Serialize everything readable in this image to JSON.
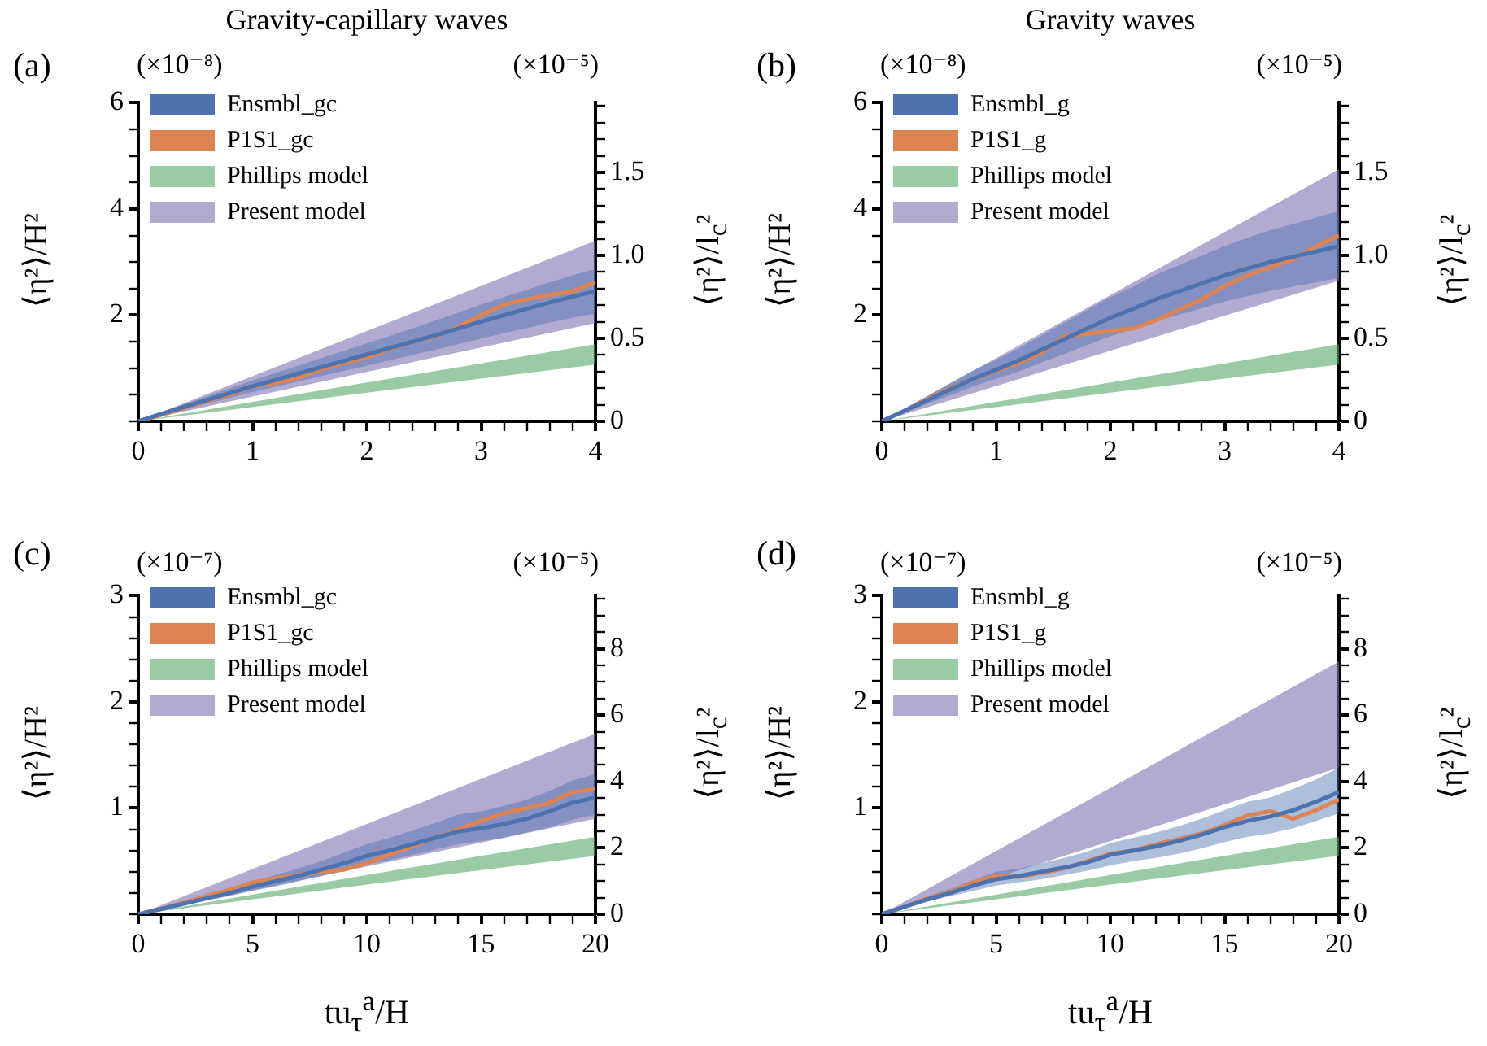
{
  "chart_data": [
    {
      "type": "line",
      "title": "Gravity-capillary waves",
      "ylabel": "⟨η²⟩/H²",
      "y2label": "⟨η²⟩/l$_{c}$²",
      "annotations": [
        "(a)",
        "(×10⁻⁸)",
        "(×10⁻⁵)"
      ],
      "legend": "top left",
      "marker": "none",
      "xlim": [
        0,
        4
      ],
      "ylim": [
        0,
        6
      ],
      "y2lim": [
        0,
        1.92
      ],
      "xticks": [
        0,
        {
          "value": 0.2,
          "label": null
        },
        {
          "value": 0.4,
          "label": null
        },
        {
          "value": 0.6,
          "label": null
        },
        {
          "value": 0.8,
          "label": null
        },
        1,
        {
          "value": 1.2,
          "label": null
        },
        {
          "value": 1.4,
          "label": null
        },
        {
          "value": 1.6,
          "label": null
        },
        {
          "value": 1.8,
          "label": null
        },
        2,
        {
          "value": 2.2,
          "label": null
        },
        {
          "value": 2.4,
          "label": null
        },
        {
          "value": 2.6,
          "label": null
        },
        {
          "value": 2.8,
          "label": null
        },
        3,
        {
          "value": 3.2,
          "label": null
        },
        {
          "value": 3.4,
          "label": null
        },
        {
          "value": 3.6,
          "label": null
        },
        {
          "value": 3.8,
          "label": null
        },
        4
      ],
      "yticks": [
        {
          "value": 0,
          "label": null
        },
        {
          "value": 0.5,
          "label": null
        },
        {
          "value": 1,
          "label": null
        },
        {
          "value": 1.5,
          "label": null
        },
        2,
        {
          "value": 2.5,
          "label": null
        },
        {
          "value": 3,
          "label": null
        },
        {
          "value": 3.5,
          "label": null
        },
        4,
        {
          "value": 4.5,
          "label": null
        },
        {
          "value": 5,
          "label": null
        },
        {
          "value": 5.5,
          "label": null
        },
        6
      ],
      "y2ticks": [
        0,
        {
          "value": 0.1,
          "label": null
        },
        {
          "value": 0.2,
          "label": null
        },
        {
          "value": 0.3,
          "label": null
        },
        {
          "value": 0.4,
          "label": null
        },
        0.5,
        {
          "value": 0.6,
          "label": null
        },
        {
          "value": 0.7,
          "label": null
        },
        {
          "value": 0.8,
          "label": null
        },
        {
          "value": 0.9,
          "label": null
        },
        {
          "value": 1,
          "label": "1.0"
        },
        {
          "value": 1.1,
          "label": null
        },
        {
          "value": 1.2,
          "label": null
        },
        {
          "value": 1.3,
          "label": null
        },
        {
          "value": 1.4,
          "label": null
        },
        1.5,
        {
          "value": 1.6,
          "label": null
        },
        {
          "value": 1.7,
          "label": null
        },
        {
          "value": 1.8,
          "label": null
        },
        {
          "value": 1.9,
          "label": null
        }
      ],
      "x": [
        0,
        0.2,
        0.4,
        0.6,
        0.8,
        1,
        1.2,
        1.4,
        1.6,
        1.8,
        2,
        2.2,
        2.4,
        2.6,
        2.8,
        3,
        3.2,
        3.4,
        3.6,
        3.8,
        4
      ],
      "series": [
        {
          "name": "Ensmbl_gc",
          "type": "line",
          "color": "#4c72b0",
          "values": [
            0,
            0.14,
            0.27,
            0.4,
            0.53,
            0.66,
            0.78,
            0.9,
            1.02,
            1.14,
            1.26,
            1.38,
            1.5,
            1.62,
            1.75,
            1.88,
            2.0,
            2.12,
            2.24,
            2.35,
            2.45
          ],
          "lower": [
            0,
            0.11,
            0.22,
            0.33,
            0.44,
            0.55,
            0.65,
            0.75,
            0.85,
            0.95,
            1.05,
            1.15,
            1.25,
            1.35,
            1.45,
            1.56,
            1.66,
            1.76,
            1.86,
            1.95,
            2.03
          ],
          "upper": [
            0,
            0.17,
            0.32,
            0.47,
            0.62,
            0.77,
            0.91,
            1.05,
            1.19,
            1.33,
            1.47,
            1.61,
            1.75,
            1.9,
            2.05,
            2.2,
            2.34,
            2.48,
            2.62,
            2.75,
            2.87
          ]
        },
        {
          "name": "P1S1_gc",
          "type": "line",
          "color": "#dd8452",
          "values": [
            0,
            0.12,
            0.25,
            0.38,
            0.5,
            0.66,
            0.72,
            0.82,
            0.98,
            1.1,
            1.2,
            1.36,
            1.5,
            1.6,
            1.78,
            2.0,
            2.2,
            2.3,
            2.38,
            2.45,
            2.62
          ]
        },
        {
          "name": "Phillips model",
          "type": "line",
          "color": "#55a868",
          "x": [
            0,
            2,
            4
          ],
          "values": [
            null,
            null,
            null
          ],
          "lower": [
            0,
            0.54,
            1.07
          ],
          "upper": [
            0,
            0.73,
            1.45
          ]
        },
        {
          "name": "Present model",
          "type": "line",
          "color": "#8172b3",
          "x": [
            0,
            2,
            4
          ],
          "values": [
            null,
            null,
            null
          ],
          "lower": [
            0,
            0.93,
            1.85
          ],
          "upper": [
            0,
            1.7,
            3.4
          ]
        }
      ]
    },
    {
      "type": "line",
      "title": "Gravity waves",
      "ylabel": "⟨η²⟩/H²",
      "y2label": "⟨η²⟩/l$_{c}$²",
      "annotations": [
        "(b)",
        "(×10⁻⁸)",
        "(×10⁻⁵)"
      ],
      "legend": "top left",
      "marker": "none",
      "xlim": [
        0,
        4
      ],
      "ylim": [
        0,
        6
      ],
      "y2lim": [
        0,
        1.92
      ],
      "xticks": [
        0,
        {
          "value": 0.2,
          "label": null
        },
        {
          "value": 0.4,
          "label": null
        },
        {
          "value": 0.6,
          "label": null
        },
        {
          "value": 0.8,
          "label": null
        },
        1,
        {
          "value": 1.2,
          "label": null
        },
        {
          "value": 1.4,
          "label": null
        },
        {
          "value": 1.6,
          "label": null
        },
        {
          "value": 1.8,
          "label": null
        },
        2,
        {
          "value": 2.2,
          "label": null
        },
        {
          "value": 2.4,
          "label": null
        },
        {
          "value": 2.6,
          "label": null
        },
        {
          "value": 2.8,
          "label": null
        },
        3,
        {
          "value": 3.2,
          "label": null
        },
        {
          "value": 3.4,
          "label": null
        },
        {
          "value": 3.6,
          "label": null
        },
        {
          "value": 3.8,
          "label": null
        },
        4
      ],
      "yticks": [
        {
          "value": 0,
          "label": null
        },
        {
          "value": 0.5,
          "label": null
        },
        {
          "value": 1,
          "label": null
        },
        {
          "value": 1.5,
          "label": null
        },
        2,
        {
          "value": 2.5,
          "label": null
        },
        {
          "value": 3,
          "label": null
        },
        {
          "value": 3.5,
          "label": null
        },
        4,
        {
          "value": 4.5,
          "label": null
        },
        {
          "value": 5,
          "label": null
        },
        {
          "value": 5.5,
          "label": null
        },
        6
      ],
      "y2ticks": [
        0,
        {
          "value": 0.1,
          "label": null
        },
        {
          "value": 0.2,
          "label": null
        },
        {
          "value": 0.3,
          "label": null
        },
        {
          "value": 0.4,
          "label": null
        },
        0.5,
        {
          "value": 0.6,
          "label": null
        },
        {
          "value": 0.7,
          "label": null
        },
        {
          "value": 0.8,
          "label": null
        },
        {
          "value": 0.9,
          "label": null
        },
        {
          "value": 1,
          "label": "1.0"
        },
        {
          "value": 1.1,
          "label": null
        },
        {
          "value": 1.2,
          "label": null
        },
        {
          "value": 1.3,
          "label": null
        },
        {
          "value": 1.4,
          "label": null
        },
        1.5,
        {
          "value": 1.6,
          "label": null
        },
        {
          "value": 1.7,
          "label": null
        },
        {
          "value": 1.8,
          "label": null
        },
        {
          "value": 1.9,
          "label": null
        }
      ],
      "x": [
        0,
        0.2,
        0.4,
        0.6,
        0.8,
        1,
        1.2,
        1.4,
        1.6,
        1.8,
        2,
        2.2,
        2.4,
        2.6,
        2.8,
        3,
        3.2,
        3.4,
        3.6,
        3.8,
        4
      ],
      "series": [
        {
          "name": "Ensmbl_g",
          "type": "line",
          "color": "#4c72b0",
          "values": [
            0,
            0.2,
            0.4,
            0.6,
            0.8,
            0.97,
            1.15,
            1.35,
            1.55,
            1.75,
            1.95,
            2.12,
            2.3,
            2.45,
            2.6,
            2.75,
            2.88,
            3.0,
            3.1,
            3.2,
            3.3
          ],
          "lower": [
            0,
            0.16,
            0.33,
            0.49,
            0.66,
            0.8,
            0.94,
            1.11,
            1.27,
            1.44,
            1.6,
            1.74,
            1.89,
            2.01,
            2.13,
            2.26,
            2.36,
            2.46,
            2.54,
            2.62,
            2.7
          ],
          "upper": [
            0,
            0.24,
            0.48,
            0.72,
            0.96,
            1.16,
            1.38,
            1.62,
            1.86,
            2.1,
            2.34,
            2.54,
            2.76,
            2.94,
            3.12,
            3.3,
            3.46,
            3.6,
            3.72,
            3.84,
            3.96
          ]
        },
        {
          "name": "P1S1_g",
          "type": "line",
          "color": "#dd8452",
          "values": [
            0,
            0.2,
            0.42,
            0.62,
            0.8,
            0.95,
            1.1,
            1.3,
            1.6,
            1.65,
            1.7,
            1.75,
            1.9,
            2.1,
            2.3,
            2.55,
            2.75,
            2.9,
            3.05,
            3.3,
            3.5
          ]
        },
        {
          "name": "Phillips model",
          "type": "line",
          "color": "#55a868",
          "x": [
            0,
            2,
            4
          ],
          "values": [
            null,
            null,
            null
          ],
          "lower": [
            0,
            0.54,
            1.07
          ],
          "upper": [
            0,
            0.73,
            1.45
          ]
        },
        {
          "name": "Present model",
          "type": "line",
          "color": "#8172b3",
          "x": [
            0,
            2,
            4
          ],
          "values": [
            null,
            null,
            null
          ],
          "lower": [
            0,
            1.33,
            2.65
          ],
          "upper": [
            0,
            2.38,
            4.75
          ]
        }
      ]
    },
    {
      "type": "line",
      "xlabel": "tu$_{τ}$$^{a}$/H",
      "ylabel": "⟨η²⟩/H²",
      "y2label": "⟨η²⟩/l$_{c}$²",
      "annotations": [
        "(c)",
        "(×10⁻⁷)",
        "(×10⁻⁵)"
      ],
      "legend": "top left",
      "marker": "none",
      "xlim": [
        0,
        20
      ],
      "ylim": [
        0,
        3
      ],
      "y2lim": [
        0,
        9.6
      ],
      "xticks": [
        0,
        {
          "value": 1,
          "label": null
        },
        {
          "value": 2,
          "label": null
        },
        {
          "value": 3,
          "label": null
        },
        {
          "value": 4,
          "label": null
        },
        5,
        {
          "value": 6,
          "label": null
        },
        {
          "value": 7,
          "label": null
        },
        {
          "value": 8,
          "label": null
        },
        {
          "value": 9,
          "label": null
        },
        10,
        {
          "value": 11,
          "label": null
        },
        {
          "value": 12,
          "label": null
        },
        {
          "value": 13,
          "label": null
        },
        {
          "value": 14,
          "label": null
        },
        15,
        {
          "value": 16,
          "label": null
        },
        {
          "value": 17,
          "label": null
        },
        {
          "value": 18,
          "label": null
        },
        {
          "value": 19,
          "label": null
        },
        20
      ],
      "yticks": [
        {
          "value": 0,
          "label": null
        },
        {
          "value": 0.2,
          "label": null
        },
        {
          "value": 0.4,
          "label": null
        },
        {
          "value": 0.6,
          "label": null
        },
        {
          "value": 0.8,
          "label": null
        },
        1,
        {
          "value": 1.2,
          "label": null
        },
        {
          "value": 1.4,
          "label": null
        },
        {
          "value": 1.6,
          "label": null
        },
        {
          "value": 1.8,
          "label": null
        },
        2,
        {
          "value": 2.2,
          "label": null
        },
        {
          "value": 2.4,
          "label": null
        },
        {
          "value": 2.6,
          "label": null
        },
        {
          "value": 2.8,
          "label": null
        },
        3
      ],
      "y2ticks": [
        0,
        {
          "value": 0.5,
          "label": null
        },
        {
          "value": 1,
          "label": null
        },
        {
          "value": 1.5,
          "label": null
        },
        2,
        {
          "value": 2.5,
          "label": null
        },
        {
          "value": 3,
          "label": null
        },
        {
          "value": 3.5,
          "label": null
        },
        4,
        {
          "value": 4.5,
          "label": null
        },
        {
          "value": 5,
          "label": null
        },
        {
          "value": 5.5,
          "label": null
        },
        6,
        {
          "value": 6.5,
          "label": null
        },
        {
          "value": 7,
          "label": null
        },
        {
          "value": 7.5,
          "label": null
        },
        8,
        {
          "value": 8.5,
          "label": null
        },
        {
          "value": 9,
          "label": null
        },
        {
          "value": 9.5,
          "label": null
        }
      ],
      "x": [
        0,
        1,
        2,
        3,
        4,
        5,
        6,
        7,
        8,
        9,
        10,
        11,
        12,
        13,
        14,
        15,
        16,
        17,
        18,
        19,
        20
      ],
      "series": [
        {
          "name": "Ensmbl_gc",
          "type": "line",
          "color": "#4c72b0",
          "values": [
            0,
            0.05,
            0.1,
            0.15,
            0.2,
            0.26,
            0.31,
            0.36,
            0.42,
            0.48,
            0.55,
            0.6,
            0.66,
            0.72,
            0.78,
            0.81,
            0.85,
            0.9,
            0.97,
            1.05,
            1.1
          ],
          "lower": [
            0,
            0.04,
            0.09,
            0.13,
            0.17,
            0.22,
            0.26,
            0.31,
            0.36,
            0.41,
            0.47,
            0.51,
            0.56,
            0.61,
            0.66,
            0.69,
            0.72,
            0.77,
            0.82,
            0.89,
            0.94
          ],
          "upper": [
            0,
            0.06,
            0.12,
            0.18,
            0.24,
            0.31,
            0.37,
            0.43,
            0.5,
            0.58,
            0.66,
            0.72,
            0.79,
            0.86,
            0.94,
            0.97,
            1.02,
            1.08,
            1.16,
            1.26,
            1.32
          ]
        },
        {
          "name": "P1S1_gc",
          "type": "line",
          "color": "#dd8452",
          "values": [
            0,
            0.05,
            0.11,
            0.17,
            0.23,
            0.3,
            0.34,
            0.37,
            0.4,
            0.42,
            0.48,
            0.56,
            0.64,
            0.72,
            0.8,
            0.88,
            0.95,
            1.0,
            1.05,
            1.15,
            1.18
          ]
        },
        {
          "name": "Phillips model",
          "type": "line",
          "color": "#55a868",
          "x": [
            0,
            10,
            20
          ],
          "values": [
            null,
            null,
            null
          ],
          "lower": [
            0,
            0.28,
            0.55
          ],
          "upper": [
            0,
            0.37,
            0.73
          ]
        },
        {
          "name": "Present model",
          "type": "line",
          "color": "#8172b3",
          "x": [
            0,
            10,
            20
          ],
          "values": [
            null,
            null,
            null
          ],
          "lower": [
            0,
            0.45,
            0.9
          ],
          "upper": [
            0,
            0.85,
            1.7
          ]
        }
      ]
    },
    {
      "type": "line",
      "xlabel": "tu$_{τ}$$^{a}$/H",
      "ylabel": "⟨η²⟩/H²",
      "y2label": "⟨η²⟩/l$_{c}$²",
      "annotations": [
        "(d)",
        "(×10⁻⁷)",
        "(×10⁻⁵)"
      ],
      "legend": "top left",
      "marker": "none",
      "xlim": [
        0,
        20
      ],
      "ylim": [
        0,
        3
      ],
      "y2lim": [
        0,
        9.6
      ],
      "xticks": [
        0,
        {
          "value": 1,
          "label": null
        },
        {
          "value": 2,
          "label": null
        },
        {
          "value": 3,
          "label": null
        },
        {
          "value": 4,
          "label": null
        },
        5,
        {
          "value": 6,
          "label": null
        },
        {
          "value": 7,
          "label": null
        },
        {
          "value": 8,
          "label": null
        },
        {
          "value": 9,
          "label": null
        },
        10,
        {
          "value": 11,
          "label": null
        },
        {
          "value": 12,
          "label": null
        },
        {
          "value": 13,
          "label": null
        },
        {
          "value": 14,
          "label": null
        },
        15,
        {
          "value": 16,
          "label": null
        },
        {
          "value": 17,
          "label": null
        },
        {
          "value": 18,
          "label": null
        },
        {
          "value": 19,
          "label": null
        },
        20
      ],
      "yticks": [
        {
          "value": 0,
          "label": null
        },
        {
          "value": 0.2,
          "label": null
        },
        {
          "value": 0.4,
          "label": null
        },
        {
          "value": 0.6,
          "label": null
        },
        {
          "value": 0.8,
          "label": null
        },
        1,
        {
          "value": 1.2,
          "label": null
        },
        {
          "value": 1.4,
          "label": null
        },
        {
          "value": 1.6,
          "label": null
        },
        {
          "value": 1.8,
          "label": null
        },
        2,
        {
          "value": 2.2,
          "label": null
        },
        {
          "value": 2.4,
          "label": null
        },
        {
          "value": 2.6,
          "label": null
        },
        {
          "value": 2.8,
          "label": null
        },
        3
      ],
      "y2ticks": [
        0,
        {
          "value": 0.5,
          "label": null
        },
        {
          "value": 1,
          "label": null
        },
        {
          "value": 1.5,
          "label": null
        },
        2,
        {
          "value": 2.5,
          "label": null
        },
        {
          "value": 3,
          "label": null
        },
        {
          "value": 3.5,
          "label": null
        },
        4,
        {
          "value": 4.5,
          "label": null
        },
        {
          "value": 5,
          "label": null
        },
        {
          "value": 5.5,
          "label": null
        },
        6,
        {
          "value": 6.5,
          "label": null
        },
        {
          "value": 7,
          "label": null
        },
        {
          "value": 7.5,
          "label": null
        },
        8,
        {
          "value": 8.5,
          "label": null
        },
        {
          "value": 9,
          "label": null
        },
        {
          "value": 9.5,
          "label": null
        }
      ],
      "x": [
        0,
        1,
        2,
        3,
        4,
        5,
        6,
        7,
        8,
        9,
        10,
        11,
        12,
        13,
        14,
        15,
        16,
        17,
        18,
        19,
        20
      ],
      "series": [
        {
          "name": "Ensmbl_g",
          "type": "line",
          "color": "#4c72b0",
          "values": [
            0,
            0.07,
            0.14,
            0.2,
            0.27,
            0.33,
            0.36,
            0.4,
            0.44,
            0.49,
            0.56,
            0.6,
            0.64,
            0.69,
            0.75,
            0.82,
            0.88,
            0.92,
            0.98,
            1.06,
            1.15
          ],
          "lower": [
            0,
            0.06,
            0.12,
            0.17,
            0.22,
            0.27,
            0.3,
            0.33,
            0.37,
            0.41,
            0.46,
            0.5,
            0.53,
            0.57,
            0.62,
            0.68,
            0.73,
            0.76,
            0.81,
            0.88,
            0.95
          ],
          "upper": [
            0,
            0.08,
            0.17,
            0.24,
            0.32,
            0.4,
            0.43,
            0.48,
            0.53,
            0.59,
            0.67,
            0.72,
            0.77,
            0.83,
            0.9,
            0.98,
            1.06,
            1.1,
            1.18,
            1.27,
            1.38
          ]
        },
        {
          "name": "P1S1_g",
          "type": "line",
          "color": "#dd8452",
          "values": [
            0,
            0.07,
            0.15,
            0.21,
            0.3,
            0.36,
            0.35,
            0.39,
            0.43,
            0.5,
            0.57,
            0.6,
            0.66,
            0.71,
            0.76,
            0.84,
            0.93,
            0.97,
            0.9,
            0.98,
            1.08
          ]
        },
        {
          "name": "Phillips model",
          "type": "line",
          "color": "#55a868",
          "x": [
            0,
            10,
            20
          ],
          "values": [
            null,
            null,
            null
          ],
          "lower": [
            0,
            0.28,
            0.55
          ],
          "upper": [
            0,
            0.37,
            0.73
          ]
        },
        {
          "name": "Present model",
          "type": "line",
          "color": "#8172b3",
          "x": [
            0,
            10,
            20
          ],
          "values": [
            null,
            null,
            null
          ],
          "lower": [
            0,
            0.69,
            1.38
          ],
          "upper": [
            0,
            1.19,
            2.38
          ]
        }
      ]
    }
  ]
}
